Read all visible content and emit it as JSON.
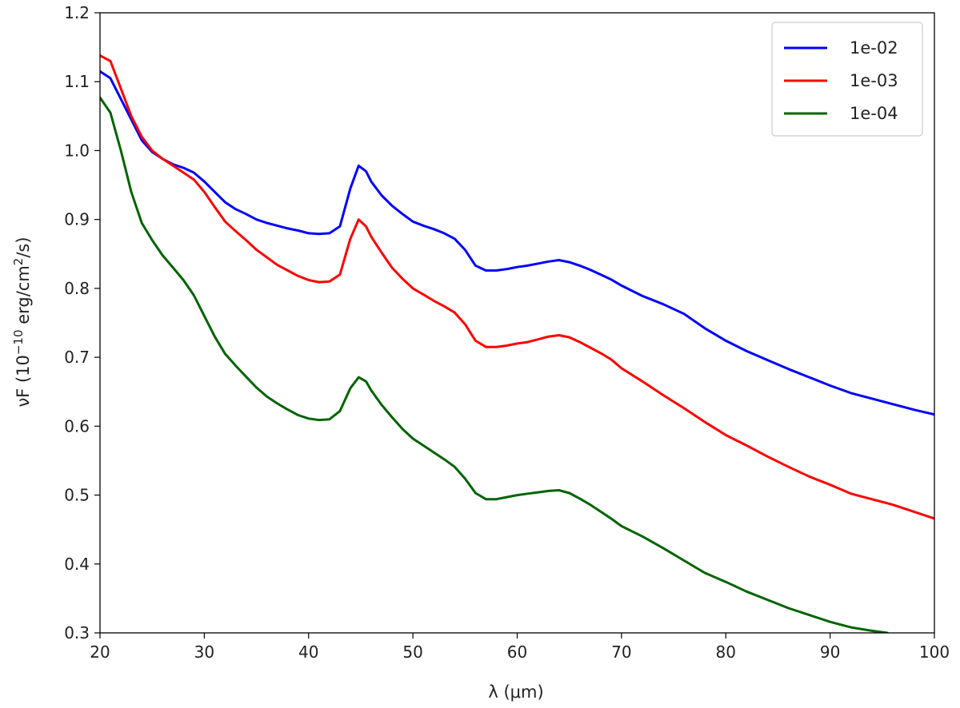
{
  "chart_data": {
    "type": "line",
    "title": "",
    "xlabel": "λ (μm)",
    "ylabel_prefix": "νF (10",
    "ylabel_exp1": "−10",
    "ylabel_mid": " erg/cm",
    "ylabel_exp2": "2",
    "ylabel_suffix": "/s)",
    "xlim": [
      20,
      100
    ],
    "ylim": [
      0.3,
      1.2
    ],
    "xticks": [
      20,
      30,
      40,
      50,
      60,
      70,
      80,
      90,
      100
    ],
    "xtick_labels": [
      "20",
      "30",
      "40",
      "50",
      "60",
      "70",
      "80",
      "90",
      "100"
    ],
    "yticks": [
      0.3,
      0.4,
      0.5,
      0.6,
      0.7,
      0.8,
      0.9,
      1.0,
      1.1,
      1.2
    ],
    "ytick_labels": [
      "0.3",
      "0.4",
      "0.5",
      "0.6",
      "0.7",
      "0.8",
      "0.9",
      "1.0",
      "1.1",
      "1.2"
    ],
    "grid": false,
    "legend_position": "top-right",
    "series": [
      {
        "name": "1e-02",
        "color": "#0000ff",
        "x": [
          20,
          21,
          22,
          23,
          24,
          25,
          26,
          27,
          28,
          29,
          30,
          31,
          32,
          33,
          34,
          35,
          36,
          37,
          38,
          39,
          40,
          41,
          42,
          43,
          44,
          44.8,
          45.5,
          46,
          47,
          48,
          49,
          50,
          51,
          52,
          53,
          54,
          55,
          56,
          57,
          58,
          59,
          60,
          61,
          62,
          63,
          64,
          65,
          66,
          67,
          68,
          69,
          70,
          72,
          74,
          76,
          78,
          80,
          82,
          84,
          86,
          88,
          90,
          92,
          94,
          96,
          98,
          100
        ],
        "y": [
          1.115,
          1.105,
          1.075,
          1.045,
          1.015,
          0.998,
          0.988,
          0.98,
          0.975,
          0.968,
          0.955,
          0.94,
          0.925,
          0.915,
          0.908,
          0.9,
          0.895,
          0.891,
          0.887,
          0.884,
          0.88,
          0.879,
          0.88,
          0.89,
          0.945,
          0.978,
          0.97,
          0.955,
          0.935,
          0.92,
          0.908,
          0.897,
          0.891,
          0.886,
          0.88,
          0.872,
          0.856,
          0.833,
          0.826,
          0.826,
          0.828,
          0.831,
          0.833,
          0.836,
          0.839,
          0.841,
          0.838,
          0.833,
          0.827,
          0.82,
          0.813,
          0.804,
          0.789,
          0.777,
          0.763,
          0.742,
          0.724,
          0.709,
          0.696,
          0.683,
          0.671,
          0.659,
          0.648,
          0.64,
          0.632,
          0.624,
          0.617
        ]
      },
      {
        "name": "1e-03",
        "color": "#ff0000",
        "x": [
          20,
          21,
          22,
          23,
          24,
          25,
          26,
          27,
          28,
          29,
          30,
          31,
          32,
          33,
          34,
          35,
          36,
          37,
          38,
          39,
          40,
          41,
          42,
          43,
          44,
          44.8,
          45.5,
          46,
          47,
          48,
          49,
          50,
          51,
          52,
          53,
          54,
          55,
          56,
          57,
          58,
          59,
          60,
          61,
          62,
          63,
          64,
          65,
          66,
          67,
          68,
          69,
          70,
          72,
          74,
          76,
          78,
          80,
          82,
          84,
          86,
          88,
          90,
          92,
          94,
          96,
          98,
          100
        ],
        "y": [
          1.138,
          1.13,
          1.09,
          1.05,
          1.02,
          1.0,
          0.988,
          0.978,
          0.968,
          0.958,
          0.94,
          0.918,
          0.897,
          0.883,
          0.87,
          0.856,
          0.845,
          0.834,
          0.826,
          0.818,
          0.812,
          0.809,
          0.81,
          0.82,
          0.872,
          0.9,
          0.89,
          0.875,
          0.852,
          0.83,
          0.814,
          0.8,
          0.791,
          0.782,
          0.774,
          0.765,
          0.748,
          0.724,
          0.715,
          0.715,
          0.717,
          0.72,
          0.722,
          0.726,
          0.73,
          0.732,
          0.729,
          0.722,
          0.714,
          0.706,
          0.697,
          0.684,
          0.665,
          0.645,
          0.626,
          0.606,
          0.587,
          0.572,
          0.556,
          0.541,
          0.527,
          0.515,
          0.502,
          0.494,
          0.486,
          0.476,
          0.466
        ]
      },
      {
        "name": "1e-04",
        "color": "#006400",
        "x": [
          20,
          21,
          22,
          23,
          24,
          25,
          26,
          27,
          28,
          29,
          30,
          31,
          32,
          33,
          34,
          35,
          36,
          37,
          38,
          39,
          40,
          41,
          42,
          43,
          44,
          44.8,
          45.5,
          46,
          47,
          48,
          49,
          50,
          51,
          52,
          53,
          54,
          55,
          56,
          57,
          58,
          59,
          60,
          61,
          62,
          63,
          64,
          65,
          66,
          67,
          68,
          69,
          70,
          72,
          74,
          76,
          78,
          80,
          82,
          84,
          86,
          88,
          90,
          92,
          94,
          95.5
        ],
        "y": [
          1.077,
          1.055,
          1.0,
          0.94,
          0.895,
          0.87,
          0.848,
          0.83,
          0.812,
          0.79,
          0.76,
          0.73,
          0.705,
          0.688,
          0.672,
          0.656,
          0.643,
          0.633,
          0.624,
          0.616,
          0.611,
          0.609,
          0.61,
          0.622,
          0.655,
          0.671,
          0.665,
          0.652,
          0.631,
          0.613,
          0.596,
          0.582,
          0.572,
          0.562,
          0.552,
          0.541,
          0.524,
          0.503,
          0.494,
          0.494,
          0.497,
          0.5,
          0.502,
          0.504,
          0.506,
          0.507,
          0.503,
          0.495,
          0.486,
          0.476,
          0.466,
          0.455,
          0.44,
          0.423,
          0.405,
          0.387,
          0.374,
          0.36,
          0.348,
          0.336,
          0.326,
          0.316,
          0.308,
          0.303,
          0.3
        ]
      }
    ]
  }
}
